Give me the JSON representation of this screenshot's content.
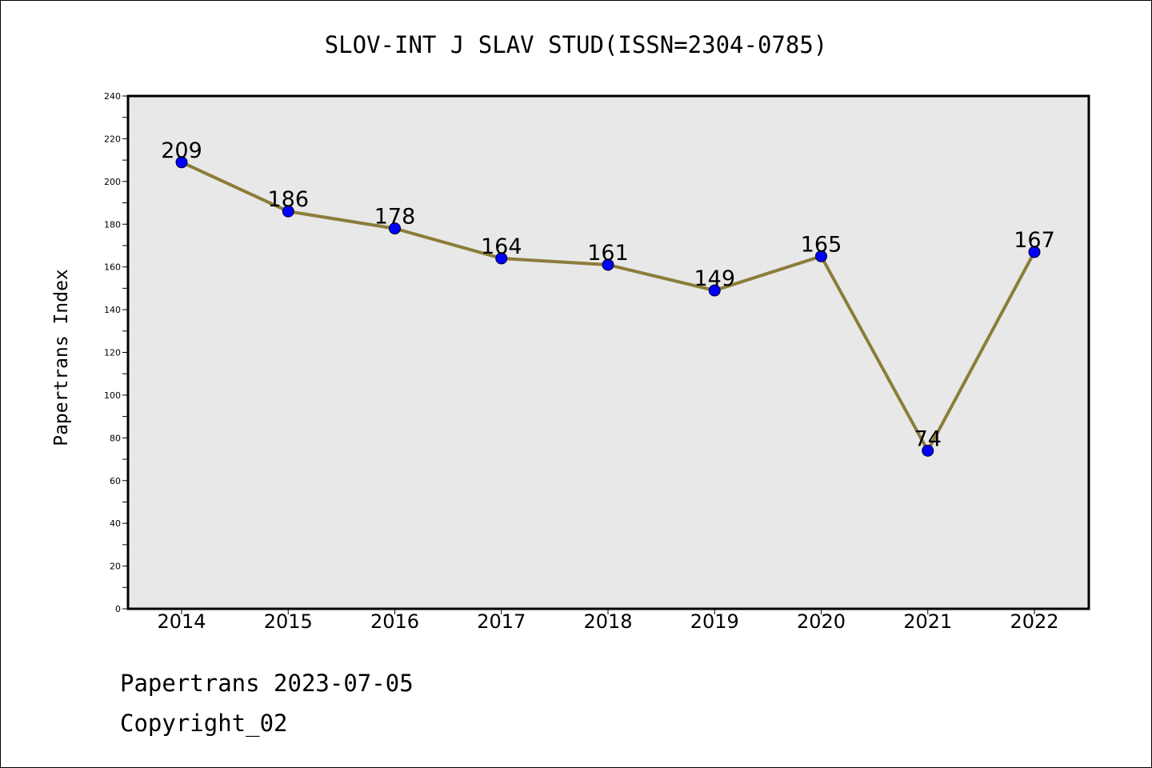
{
  "chart_data": {
    "type": "line",
    "title": "SLOV-INT J SLAV STUD(ISSN=2304-0785)",
    "xlabel": "",
    "ylabel": "Papertrans Index",
    "categories": [
      "2014",
      "2015",
      "2016",
      "2017",
      "2018",
      "2019",
      "2020",
      "2021",
      "2022"
    ],
    "values": [
      209,
      186,
      178,
      164,
      161,
      149,
      165,
      74,
      167
    ],
    "data_labels": [
      "209",
      "186",
      "178",
      "164",
      "161",
      "149",
      "165",
      "74",
      "167"
    ],
    "y_ticks": [
      "0",
      "20",
      "40",
      "60",
      "80",
      "100",
      "120",
      "140",
      "160",
      "180",
      "200",
      "220",
      "240"
    ],
    "ylim": [
      0,
      240
    ],
    "grid": false,
    "legend": "none"
  },
  "footer": {
    "source": "Papertrans 2023-07-05",
    "copyright": "Copyright_02"
  },
  "colors": {
    "line": "#8b7d3a",
    "marker": "#0000ff",
    "plot_background": "#e8e8e8",
    "frame": "#000000"
  }
}
